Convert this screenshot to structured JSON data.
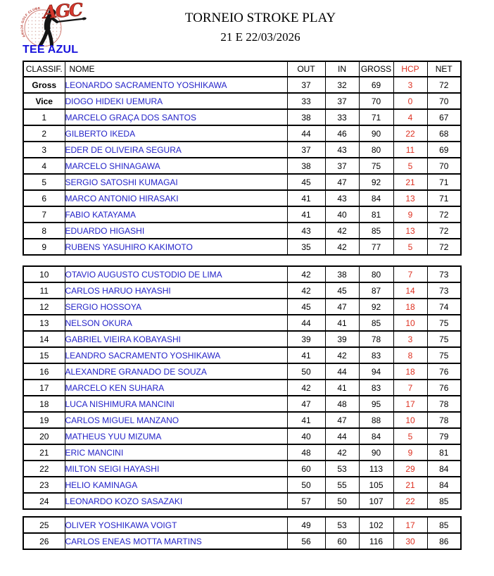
{
  "header": {
    "title": "TORNEIO STROKE PLAY",
    "date": "21 E 22/03/2026",
    "logo": {
      "monogram": "AGC",
      "arc_text": "ARUJA GOLF CLUBE"
    }
  },
  "tee_label": "TEE AZUL",
  "colors": {
    "name_blue": "#2423c8",
    "tee_blue": "#1712dc",
    "hcp_red": "#dd3020",
    "logo_red": "#d5382e"
  },
  "table": {
    "columns": [
      "CLASSIF.",
      "NOME",
      "OUT",
      "IN",
      "GROSS",
      "HCP",
      "NET"
    ],
    "sections": [
      {
        "rows": [
          [
            "Gross",
            "LEONARDO SACRAMENTO YOSHIKAWA",
            "37",
            "32",
            "69",
            "3",
            "72"
          ],
          [
            "Vice",
            "DIOGO HIDEKI UEMURA",
            "33",
            "37",
            "70",
            "0",
            "70"
          ],
          [
            "1",
            "MARCELO GRAÇA DOS SANTOS",
            "38",
            "33",
            "71",
            "4",
            "67"
          ],
          [
            "2",
            "GILBERTO IKEDA",
            "44",
            "46",
            "90",
            "22",
            "68"
          ],
          [
            "3",
            "EDER DE OLIVEIRA SEGURA",
            "37",
            "43",
            "80",
            "11",
            "69"
          ],
          [
            "4",
            "MARCELO SHINAGAWA",
            "38",
            "37",
            "75",
            "5",
            "70"
          ],
          [
            "5",
            "SERGIO SATOSHI KUMAGAI",
            "45",
            "47",
            "92",
            "21",
            "71"
          ],
          [
            "6",
            "MARCO ANTONIO HIRASAKI",
            "41",
            "43",
            "84",
            "13",
            "71"
          ],
          [
            "7",
            "FABIO KATAYAMA",
            "41",
            "40",
            "81",
            "9",
            "72"
          ],
          [
            "8",
            "EDUARDO HIGASHI",
            "43",
            "42",
            "85",
            "13",
            "72"
          ],
          [
            "9",
            "RUBENS YASUHIRO KAKIMOTO",
            "35",
            "42",
            "77",
            "5",
            "72"
          ]
        ]
      },
      {
        "rows": [
          [
            "10",
            "OTAVIO AUGUSTO CUSTODIO DE LIMA",
            "42",
            "38",
            "80",
            "7",
            "73"
          ],
          [
            "11",
            "CARLOS HARUO HAYASHI",
            "42",
            "45",
            "87",
            "14",
            "73"
          ],
          [
            "12",
            "SERGIO HOSSOYA",
            "45",
            "47",
            "92",
            "18",
            "74"
          ],
          [
            "13",
            "NELSON OKURA",
            "44",
            "41",
            "85",
            "10",
            "75"
          ],
          [
            "14",
            "GABRIEL VIEIRA KOBAYASHI",
            "39",
            "39",
            "78",
            "3",
            "75"
          ],
          [
            "15",
            "LEANDRO SACRAMENTO YOSHIKAWA",
            "41",
            "42",
            "83",
            "8",
            "75"
          ],
          [
            "16",
            "ALEXANDRE GRANADO DE SOUZA",
            "50",
            "44",
            "94",
            "18",
            "76"
          ],
          [
            "17",
            "MARCELO KEN SUHARA",
            "42",
            "41",
            "83",
            "7",
            "76"
          ],
          [
            "18",
            "LUCA NISHIMURA MANCINI",
            "47",
            "48",
            "95",
            "17",
            "78"
          ],
          [
            "19",
            "CARLOS MIGUEL MANZANO",
            "41",
            "47",
            "88",
            "10",
            "78"
          ],
          [
            "20",
            "MATHEUS YUU MIZUMA",
            "40",
            "44",
            "84",
            "5",
            "79"
          ],
          [
            "21",
            "ERIC MANCINI",
            "48",
            "42",
            "90",
            "9",
            "81"
          ],
          [
            "22",
            "MILTON SEIGI HAYASHI",
            "60",
            "53",
            "113",
            "29",
            "84"
          ],
          [
            "23",
            "HELIO KAMINAGA",
            "50",
            "55",
            "105",
            "21",
            "84"
          ],
          [
            "24",
            "LEONARDO KOZO SASAZAKI",
            "57",
            "50",
            "107",
            "22",
            "85"
          ]
        ]
      },
      {
        "rows": [
          [
            "25",
            "OLIVER YOSHIKAWA VOIGT",
            "49",
            "53",
            "102",
            "17",
            "85"
          ],
          [
            "26",
            "CARLOS ENEAS MOTTA MARTINS",
            "56",
            "60",
            "116",
            "30",
            "86"
          ]
        ]
      }
    ]
  }
}
